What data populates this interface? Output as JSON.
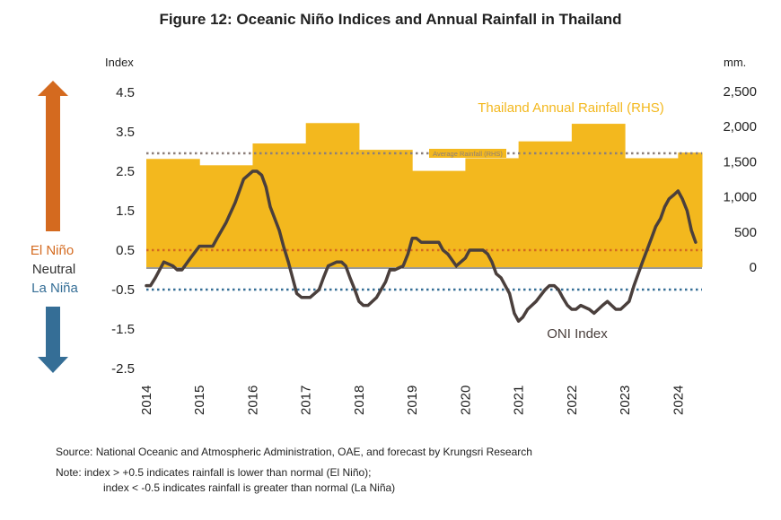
{
  "title": "Figure 12: Oceanic Niño Indices and Annual Rainfall in Thailand",
  "source": "Source: National Oceanic and Atmospheric Administration, OAE, and forecast by Krungsri Research",
  "note_line1": "Note:   index > +0.5 indicates rainfall is lower than normal (El Niño);",
  "note_line2": "index < -0.5 indicates rainfall is greater than normal (La Niña)",
  "colors": {
    "rainfall": "#F3B81E",
    "oni": "#4A3F3C",
    "el_nino": "#D46A1F",
    "la_nina": "#356E96",
    "avg_rainfall": "#8C7F7A",
    "neutral": "#333333"
  },
  "chart_data": {
    "type": "area",
    "left_axis_title": "Index",
    "right_axis_title": "mm.",
    "left_ticks": [
      "4.5",
      "3.5",
      "2.5",
      "1.5",
      "0.5",
      "-0.5",
      "-1.5",
      "-2.5"
    ],
    "left_tick_values": [
      4.5,
      3.5,
      2.5,
      1.5,
      0.5,
      -0.5,
      -1.5,
      -2.5
    ],
    "right_ticks": [
      "2,500",
      "2,000",
      "1,500",
      "1,000",
      "500",
      "0"
    ],
    "right_tick_values": [
      2500,
      2000,
      1500,
      1000,
      500,
      0
    ],
    "left_ylim": [
      -2.5,
      4.5
    ],
    "right_ylim": [
      0,
      2500
    ],
    "x_categories": [
      "2014",
      "2015",
      "2016",
      "2017",
      "2018",
      "2019",
      "2020",
      "2021",
      "2022",
      "2023",
      "2024"
    ],
    "rainfall_label": "Thailand Annual Rainfall (RHS)",
    "oni_label": "ONI Index",
    "avg_label": "Average Rainfall (RHS)",
    "el_nino_label": "El Niño",
    "neutral_label": "Neutral",
    "la_nina_label": "La Niña",
    "el_nino_threshold": 0.5,
    "la_nina_threshold": -0.5,
    "avg_rainfall_mm": 1620,
    "rainfall": [
      {
        "year": "2014",
        "mm": 1540
      },
      {
        "year": "2015",
        "mm": 1450
      },
      {
        "year": "2016",
        "mm": 1760
      },
      {
        "year": "2017",
        "mm": 2050
      },
      {
        "year": "2018",
        "mm": 1670
      },
      {
        "year": "2019",
        "mm": 1370
      },
      {
        "year": "2020",
        "mm": 1550
      },
      {
        "year": "2021",
        "mm": 1790
      },
      {
        "year": "2022",
        "mm": 2040
      },
      {
        "year": "2023",
        "mm": 1550
      },
      {
        "year": "2024",
        "mm": 1630
      }
    ],
    "oni": [
      {
        "x": 2014.0,
        "y": -0.4
      },
      {
        "x": 2014.08,
        "y": -0.4
      },
      {
        "x": 2014.17,
        "y": -0.2
      },
      {
        "x": 2014.33,
        "y": 0.2
      },
      {
        "x": 2014.5,
        "y": 0.1
      },
      {
        "x": 2014.58,
        "y": 0.0
      },
      {
        "x": 2014.67,
        "y": 0.0
      },
      {
        "x": 2014.83,
        "y": 0.3
      },
      {
        "x": 2015.0,
        "y": 0.6
      },
      {
        "x": 2015.08,
        "y": 0.6
      },
      {
        "x": 2015.17,
        "y": 0.6
      },
      {
        "x": 2015.25,
        "y": 0.6
      },
      {
        "x": 2015.33,
        "y": 0.8
      },
      {
        "x": 2015.5,
        "y": 1.2
      },
      {
        "x": 2015.67,
        "y": 1.7
      },
      {
        "x": 2015.83,
        "y": 2.3
      },
      {
        "x": 2016.0,
        "y": 2.5
      },
      {
        "x": 2016.08,
        "y": 2.5
      },
      {
        "x": 2016.17,
        "y": 2.4
      },
      {
        "x": 2016.25,
        "y": 2.1
      },
      {
        "x": 2016.33,
        "y": 1.6
      },
      {
        "x": 2016.5,
        "y": 1.0
      },
      {
        "x": 2016.58,
        "y": 0.6
      },
      {
        "x": 2016.67,
        "y": 0.2
      },
      {
        "x": 2016.75,
        "y": -0.2
      },
      {
        "x": 2016.83,
        "y": -0.6
      },
      {
        "x": 2016.92,
        "y": -0.7
      },
      {
        "x": 2017.0,
        "y": -0.7
      },
      {
        "x": 2017.08,
        "y": -0.7
      },
      {
        "x": 2017.25,
        "y": -0.5
      },
      {
        "x": 2017.33,
        "y": -0.2
      },
      {
        "x": 2017.42,
        "y": 0.1
      },
      {
        "x": 2017.58,
        "y": 0.2
      },
      {
        "x": 2017.67,
        "y": 0.2
      },
      {
        "x": 2017.75,
        "y": 0.1
      },
      {
        "x": 2017.83,
        "y": -0.2
      },
      {
        "x": 2017.92,
        "y": -0.5
      },
      {
        "x": 2018.0,
        "y": -0.8
      },
      {
        "x": 2018.08,
        "y": -0.9
      },
      {
        "x": 2018.17,
        "y": -0.9
      },
      {
        "x": 2018.33,
        "y": -0.7
      },
      {
        "x": 2018.5,
        "y": -0.3
      },
      {
        "x": 2018.58,
        "y": 0.0
      },
      {
        "x": 2018.67,
        "y": 0.0
      },
      {
        "x": 2018.83,
        "y": 0.1
      },
      {
        "x": 2018.92,
        "y": 0.4
      },
      {
        "x": 2019.0,
        "y": 0.8
      },
      {
        "x": 2019.08,
        "y": 0.8
      },
      {
        "x": 2019.17,
        "y": 0.7
      },
      {
        "x": 2019.33,
        "y": 0.7
      },
      {
        "x": 2019.5,
        "y": 0.7
      },
      {
        "x": 2019.58,
        "y": 0.5
      },
      {
        "x": 2019.67,
        "y": 0.4
      },
      {
        "x": 2019.83,
        "y": 0.1
      },
      {
        "x": 2020.0,
        "y": 0.3
      },
      {
        "x": 2020.08,
        "y": 0.5
      },
      {
        "x": 2020.17,
        "y": 0.5
      },
      {
        "x": 2020.33,
        "y": 0.5
      },
      {
        "x": 2020.42,
        "y": 0.4
      },
      {
        "x": 2020.5,
        "y": 0.2
      },
      {
        "x": 2020.58,
        "y": -0.1
      },
      {
        "x": 2020.67,
        "y": -0.2
      },
      {
        "x": 2020.75,
        "y": -0.4
      },
      {
        "x": 2020.83,
        "y": -0.6
      },
      {
        "x": 2020.92,
        "y": -1.1
      },
      {
        "x": 2021.0,
        "y": -1.3
      },
      {
        "x": 2021.08,
        "y": -1.2
      },
      {
        "x": 2021.17,
        "y": -1.0
      },
      {
        "x": 2021.33,
        "y": -0.8
      },
      {
        "x": 2021.5,
        "y": -0.5
      },
      {
        "x": 2021.58,
        "y": -0.4
      },
      {
        "x": 2021.67,
        "y": -0.4
      },
      {
        "x": 2021.75,
        "y": -0.5
      },
      {
        "x": 2021.83,
        "y": -0.7
      },
      {
        "x": 2021.92,
        "y": -0.9
      },
      {
        "x": 2022.0,
        "y": -1.0
      },
      {
        "x": 2022.08,
        "y": -1.0
      },
      {
        "x": 2022.17,
        "y": -0.9
      },
      {
        "x": 2022.33,
        "y": -1.0
      },
      {
        "x": 2022.42,
        "y": -1.1
      },
      {
        "x": 2022.5,
        "y": -1.0
      },
      {
        "x": 2022.58,
        "y": -0.9
      },
      {
        "x": 2022.67,
        "y": -0.8
      },
      {
        "x": 2022.75,
        "y": -0.9
      },
      {
        "x": 2022.83,
        "y": -1.0
      },
      {
        "x": 2022.92,
        "y": -1.0
      },
      {
        "x": 2023.0,
        "y": -0.9
      },
      {
        "x": 2023.08,
        "y": -0.8
      },
      {
        "x": 2023.17,
        "y": -0.4
      },
      {
        "x": 2023.33,
        "y": 0.2
      },
      {
        "x": 2023.5,
        "y": 0.8
      },
      {
        "x": 2023.58,
        "y": 1.1
      },
      {
        "x": 2023.67,
        "y": 1.3
      },
      {
        "x": 2023.75,
        "y": 1.6
      },
      {
        "x": 2023.83,
        "y": 1.8
      },
      {
        "x": 2023.92,
        "y": 1.9
      },
      {
        "x": 2024.0,
        "y": 2.0
      },
      {
        "x": 2024.08,
        "y": 1.8
      },
      {
        "x": 2024.17,
        "y": 1.5
      },
      {
        "x": 2024.25,
        "y": 1.0
      },
      {
        "x": 2024.33,
        "y": 0.7
      }
    ]
  }
}
